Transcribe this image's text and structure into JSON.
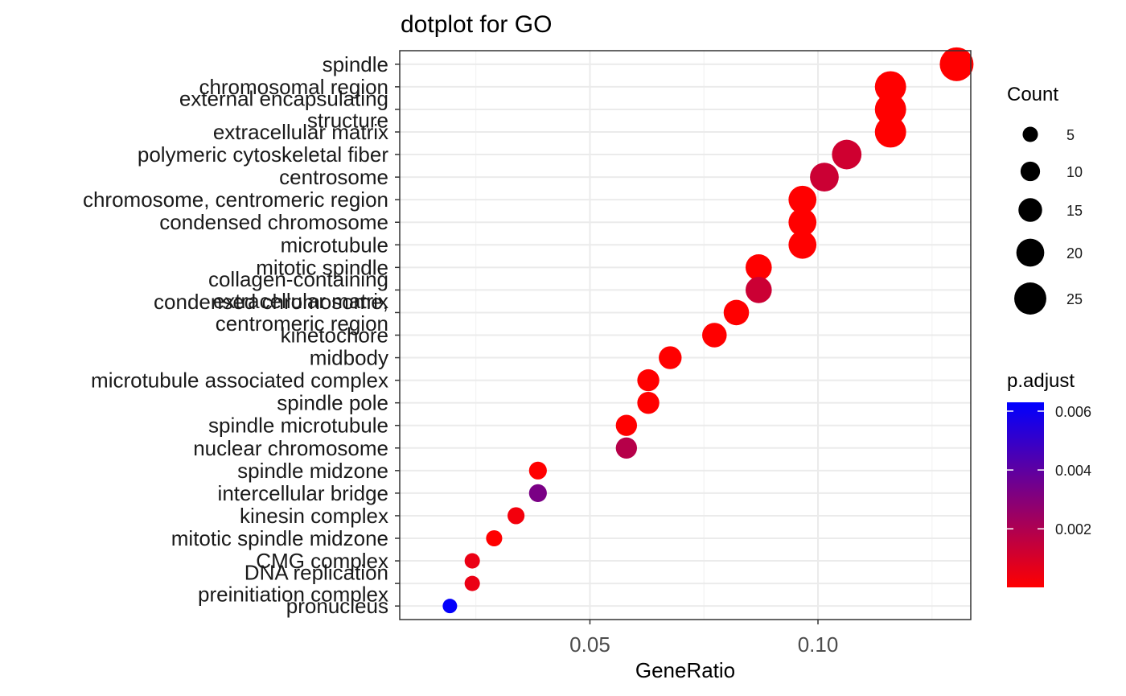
{
  "chart_data": {
    "type": "scatter",
    "title": "dotplot for GO",
    "xlabel": "GeneRatio",
    "ylabel": "",
    "xlim": [
      0.0083,
      0.1335
    ],
    "x_ticks": [
      0.05,
      0.1
    ],
    "x_tick_labels": [
      "0.05",
      "0.10"
    ],
    "grid": true,
    "categories": [
      [
        "spindle"
      ],
      [
        "chromosomal region"
      ],
      [
        "external encapsulating",
        "structure"
      ],
      [
        "extracellular matrix"
      ],
      [
        "polymeric cytoskeletal fiber"
      ],
      [
        "centrosome"
      ],
      [
        "chromosome, centromeric region"
      ],
      [
        "condensed chromosome"
      ],
      [
        "microtubule"
      ],
      [
        "mitotic spindle"
      ],
      [
        "collagen-containing",
        "extracellular matrix"
      ],
      [
        "condensed chromosome,",
        "centromeric region"
      ],
      [
        "kinetochore"
      ],
      [
        "midbody"
      ],
      [
        "microtubule associated complex"
      ],
      [
        "spindle pole"
      ],
      [
        "spindle microtubule"
      ],
      [
        "nuclear chromosome"
      ],
      [
        "spindle midzone"
      ],
      [
        "intercellular bridge"
      ],
      [
        "kinesin complex"
      ],
      [
        "mitotic spindle midzone"
      ],
      [
        "CMG complex"
      ],
      [
        "DNA replication",
        "preinitiation complex"
      ],
      [
        "pronucleus"
      ]
    ],
    "points": [
      {
        "gene_ratio": 0.1304,
        "count": 27,
        "p_adjust": 1e-05
      },
      {
        "gene_ratio": 0.1159,
        "count": 24,
        "p_adjust": 1e-05
      },
      {
        "gene_ratio": 0.1159,
        "count": 24,
        "p_adjust": 1e-05
      },
      {
        "gene_ratio": 0.1159,
        "count": 24,
        "p_adjust": 1e-05
      },
      {
        "gene_ratio": 0.1063,
        "count": 22,
        "p_adjust": 0.0012
      },
      {
        "gene_ratio": 0.1014,
        "count": 21,
        "p_adjust": 0.0013
      },
      {
        "gene_ratio": 0.0966,
        "count": 20,
        "p_adjust": 1e-05
      },
      {
        "gene_ratio": 0.0966,
        "count": 20,
        "p_adjust": 1e-05
      },
      {
        "gene_ratio": 0.0966,
        "count": 20,
        "p_adjust": 1e-05
      },
      {
        "gene_ratio": 0.087,
        "count": 18,
        "p_adjust": 1e-05
      },
      {
        "gene_ratio": 0.087,
        "count": 18,
        "p_adjust": 0.0013
      },
      {
        "gene_ratio": 0.0821,
        "count": 17,
        "p_adjust": 1e-05
      },
      {
        "gene_ratio": 0.0773,
        "count": 16,
        "p_adjust": 1e-05
      },
      {
        "gene_ratio": 0.0676,
        "count": 14,
        "p_adjust": 1e-05
      },
      {
        "gene_ratio": 0.0628,
        "count": 13,
        "p_adjust": 1e-05
      },
      {
        "gene_ratio": 0.0628,
        "count": 13,
        "p_adjust": 1e-05
      },
      {
        "gene_ratio": 0.058,
        "count": 12,
        "p_adjust": 1e-05
      },
      {
        "gene_ratio": 0.058,
        "count": 12,
        "p_adjust": 0.0018
      },
      {
        "gene_ratio": 0.0386,
        "count": 8,
        "p_adjust": 1e-05
      },
      {
        "gene_ratio": 0.0386,
        "count": 8,
        "p_adjust": 0.0033
      },
      {
        "gene_ratio": 0.0338,
        "count": 7,
        "p_adjust": 0.0003
      },
      {
        "gene_ratio": 0.029,
        "count": 6,
        "p_adjust": 1e-05
      },
      {
        "gene_ratio": 0.0242,
        "count": 5,
        "p_adjust": 0.0005
      },
      {
        "gene_ratio": 0.0242,
        "count": 5,
        "p_adjust": 0.0005
      },
      {
        "gene_ratio": 0.0193,
        "count": 4,
        "p_adjust": 0.0062
      }
    ],
    "size_legend": {
      "title": "Count",
      "values": [
        5,
        10,
        15,
        20,
        25
      ],
      "labels": [
        "5",
        "10",
        "15",
        "20",
        "25"
      ]
    },
    "color_legend": {
      "title": "p.adjust",
      "range": [
        1e-05,
        0.0063
      ],
      "ticks": [
        0.006,
        0.004,
        0.002
      ],
      "tick_labels": [
        "0.006",
        "0.004",
        "0.002"
      ],
      "low_color": "#FF0000",
      "high_color": "#0000FF"
    },
    "legend_position": "right",
    "panel_background": "#FFFFFF",
    "panel_border": "#333333"
  }
}
